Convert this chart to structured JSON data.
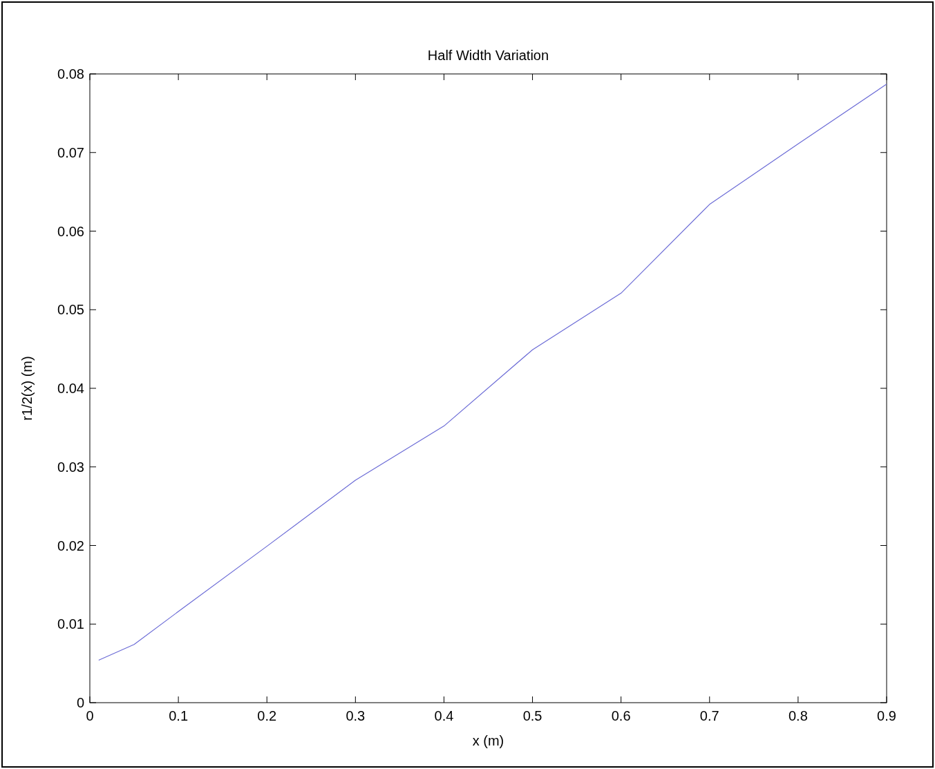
{
  "chart_data": {
    "type": "line",
    "title": "Half Width Variation",
    "xlabel": "x (m)",
    "ylabel": "r1/2(x) (m)",
    "x": [
      0.01,
      0.05,
      0.1,
      0.2,
      0.3,
      0.4,
      0.5,
      0.6,
      0.7,
      0.8,
      0.9
    ],
    "series": [
      {
        "color": "#6b6bd6",
        "values": [
          0.0054,
          0.0074,
          0.0116,
          0.0199,
          0.0283,
          0.0352,
          0.0449,
          0.0521,
          0.0634,
          0.0711,
          0.0787
        ]
      }
    ],
    "xlim": [
      0,
      0.9
    ],
    "xticks": [
      0,
      0.1,
      0.2,
      0.3,
      0.4,
      0.5,
      0.6,
      0.7,
      0.8,
      0.9
    ],
    "ylim": [
      0,
      0.08
    ],
    "yticks": [
      0,
      0.01,
      0.02,
      0.03,
      0.04,
      0.05,
      0.06,
      0.07,
      0.08
    ],
    "grid": false,
    "marker": "none",
    "line_style": "solid"
  }
}
